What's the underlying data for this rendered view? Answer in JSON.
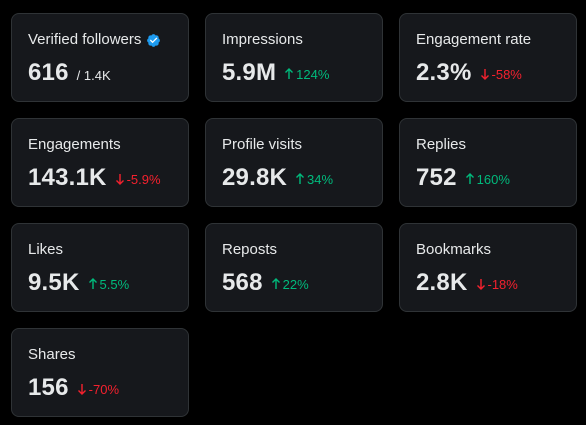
{
  "colors": {
    "background": "#000000",
    "card": "#16181c",
    "border": "#2f3336",
    "text": "#e7e9ea",
    "positive": "#00ba7c",
    "negative": "#f4212e",
    "verified": "#1d9bf0"
  },
  "metrics": [
    {
      "label": "Verified followers",
      "value": "616",
      "sub": "/ 1.4K",
      "icon": "verified-badge-icon"
    },
    {
      "label": "Impressions",
      "value": "5.9M",
      "delta": "124%",
      "direction": "up"
    },
    {
      "label": "Engagement rate",
      "value": "2.3%",
      "delta": "-58%",
      "direction": "down"
    },
    {
      "label": "Engagements",
      "value": "143.1K",
      "delta": "-5.9%",
      "direction": "down"
    },
    {
      "label": "Profile visits",
      "value": "29.8K",
      "delta": "34%",
      "direction": "up"
    },
    {
      "label": "Replies",
      "value": "752",
      "delta": "160%",
      "direction": "up"
    },
    {
      "label": "Likes",
      "value": "9.5K",
      "delta": "5.5%",
      "direction": "up"
    },
    {
      "label": "Reposts",
      "value": "568",
      "delta": "22%",
      "direction": "up"
    },
    {
      "label": "Bookmarks",
      "value": "2.8K",
      "delta": "-18%",
      "direction": "down"
    },
    {
      "label": "Shares",
      "value": "156",
      "delta": "-70%",
      "direction": "down"
    }
  ]
}
